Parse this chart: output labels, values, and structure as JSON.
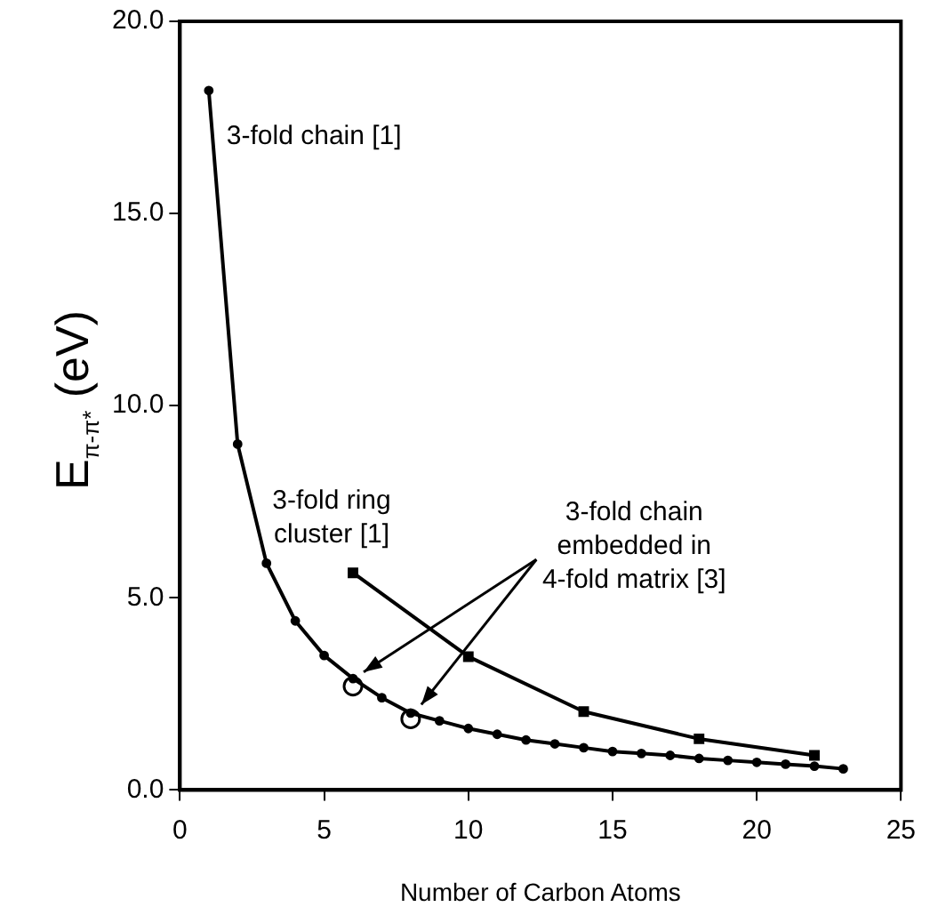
{
  "chart_data": {
    "type": "line",
    "xlabel": "Number of Carbon Atoms",
    "ylabel": "E$_{π-π*}$ (eV)",
    "xlim": [
      0,
      25
    ],
    "xticks": [
      0,
      5,
      10,
      15,
      20,
      25
    ],
    "ylim": [
      0,
      20
    ],
    "yticks": [
      {
        "value": 0,
        "label": "0.0"
      },
      {
        "value": 5,
        "label": "5.0"
      },
      {
        "value": 10,
        "label": "10.0"
      },
      {
        "value": 15,
        "label": "15.0"
      },
      {
        "value": 20,
        "label": "20.0"
      }
    ],
    "grid": false,
    "legend": false,
    "series": [
      {
        "name": "3-fold chain [1]",
        "color": "#000000",
        "marker": "circle",
        "x": [
          1,
          2,
          3,
          4,
          5,
          6,
          7,
          8,
          9,
          10,
          11,
          12,
          13,
          14,
          15,
          16,
          17,
          18,
          19,
          20,
          21,
          22,
          23
        ],
        "values": [
          18.2,
          9.0,
          5.9,
          4.4,
          3.5,
          2.9,
          2.4,
          2.0,
          1.8,
          1.6,
          1.45,
          1.3,
          1.2,
          1.1,
          1.0,
          0.95,
          0.9,
          0.82,
          0.77,
          0.72,
          0.67,
          0.62,
          0.55
        ]
      },
      {
        "name": "3-fold ring cluster [1]",
        "color": "#000000",
        "marker": "square",
        "x": [
          6,
          10,
          14,
          18,
          22
        ],
        "values": [
          5.65,
          3.47,
          2.04,
          1.33,
          0.9
        ]
      },
      {
        "name": "3-fold chain embedded in 4-fold matrix [3]",
        "type": "scatter",
        "color": "#000000",
        "marker": "circle",
        "x": [
          6,
          8
        ],
        "values": [
          2.7,
          1.85
        ]
      }
    ]
  }
}
